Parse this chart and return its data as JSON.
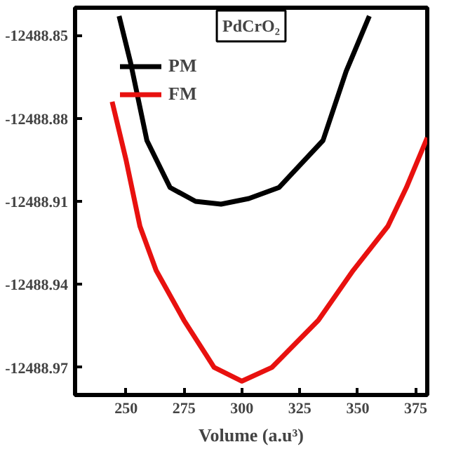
{
  "chart_data": {
    "type": "line",
    "xlabel": "Volume (a.u³)",
    "annotations": [
      "PdCrO₂"
    ],
    "xlim": [
      228,
      380
    ],
    "xticks": [
      250,
      275,
      300,
      325,
      350,
      375
    ],
    "ylim": [
      -12488.98,
      -12488.84
    ],
    "yticks": [
      -12488.85,
      -12488.88,
      -12488.91,
      -12488.94,
      -12488.97
    ],
    "legend": "top left",
    "grid": false,
    "series": [
      {
        "name": "PM",
        "color": "#000000",
        "x": [
          247,
          252,
          259,
          269,
          280,
          291,
          303,
          316,
          335,
          345,
          355
        ],
        "values": [
          -12488.843,
          -12488.86,
          -12488.888,
          -12488.905,
          -12488.91,
          -12488.911,
          -12488.909,
          -12488.905,
          -12488.888,
          -12488.863,
          -12488.843
        ]
      },
      {
        "name": "FM",
        "color": "#e8110f",
        "x": [
          244,
          250,
          256,
          263,
          275,
          288,
          300,
          313,
          333,
          348,
          363,
          371,
          380
        ],
        "values": [
          -12488.874,
          -12488.895,
          -12488.919,
          -12488.935,
          -12488.953,
          -12488.97,
          -12488.975,
          -12488.97,
          -12488.953,
          -12488.935,
          -12488.919,
          -12488.905,
          -12488.887
        ]
      }
    ]
  }
}
